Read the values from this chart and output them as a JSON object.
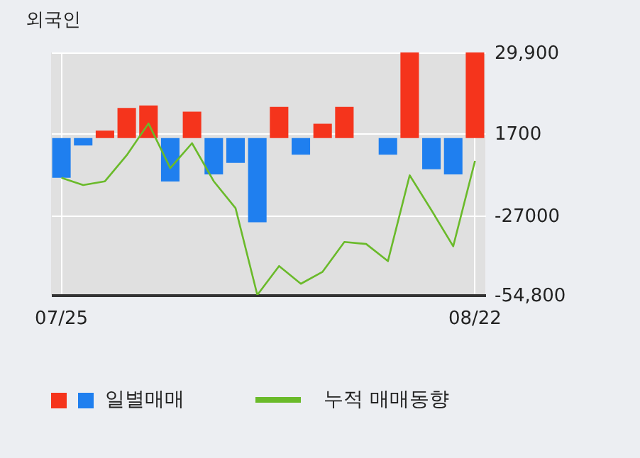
{
  "chart_data": {
    "type": "bar",
    "title": "외국인",
    "categories": [
      "07/25",
      null,
      null,
      null,
      null,
      null,
      null,
      null,
      null,
      null,
      null,
      null,
      null,
      null,
      null,
      null,
      null,
      null,
      null,
      "08/22"
    ],
    "series": [
      {
        "name": "일별매매",
        "colors": [
          "#1f7fef",
          "#1f7fef",
          "#f5341c",
          "#f5341c",
          "#f5341c",
          "#1f7fef",
          "#f5341c",
          "#1f7fef",
          "#1f7fef",
          "#1f7fef",
          "#f5341c",
          "#1f7fef",
          "#f5341c",
          "#f5341c",
          "#f5341c",
          "#1f7fef",
          "#f5341c",
          "#1f7fef",
          "#1f7fef",
          "#f5341c"
        ],
        "values": [
          -13900,
          -2600,
          2600,
          10500,
          11400,
          -15200,
          9200,
          -12700,
          -8700,
          -29400,
          10900,
          -5800,
          5000,
          10900,
          0,
          -5800,
          29900,
          -10900,
          -12700,
          29900
        ]
      },
      {
        "name": "누적 매매동향",
        "type": "line",
        "color": "#6aba2a",
        "values": [
          -13900,
          -16400,
          -15100,
          -6000,
          5100,
          -10500,
          -1800,
          -15100,
          -24500,
          -54800,
          -44700,
          -50900,
          -46700,
          -36300,
          -37000,
          -43000,
          -13000,
          -25200,
          -37800,
          -8000
        ]
      }
    ],
    "ylim": [
      -54800,
      29900
    ],
    "yticks": [
      {
        "value": 29900,
        "label": "29,900"
      },
      {
        "value": 1700,
        "label": "1700"
      },
      {
        "value": -27000,
        "label": "-27000"
      },
      {
        "value": -54800,
        "label": "-54,800"
      }
    ],
    "grid": true,
    "legend": "bottom left"
  }
}
